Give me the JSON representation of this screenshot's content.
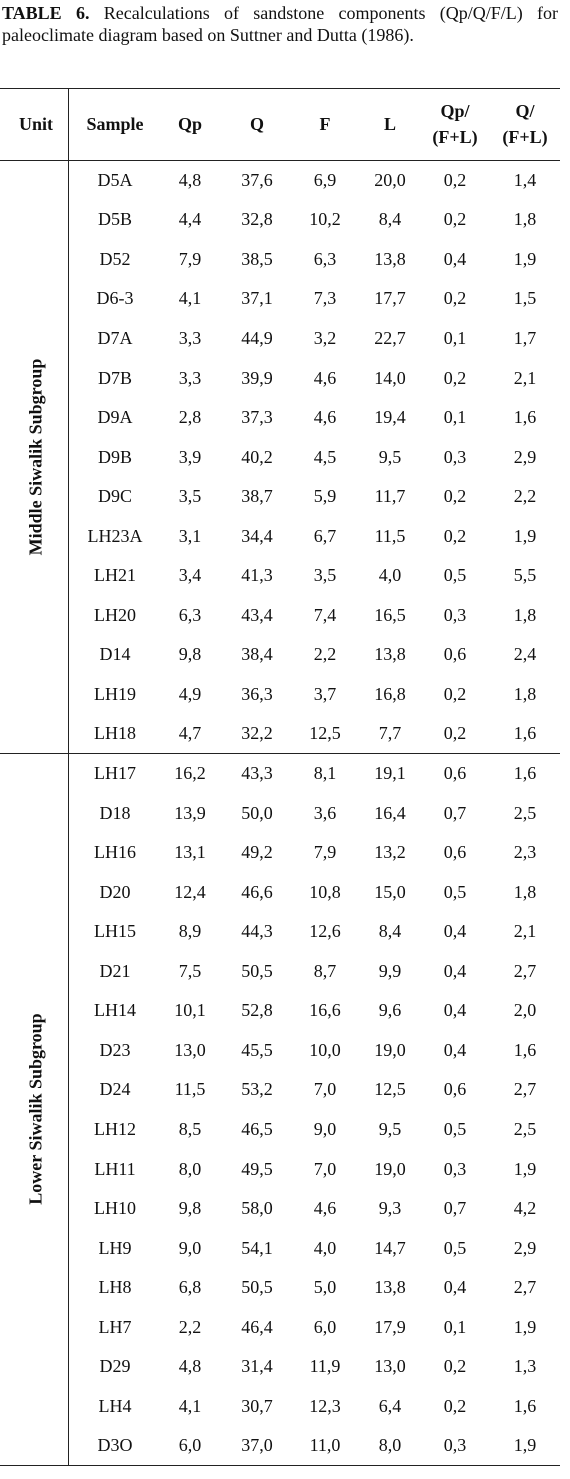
{
  "caption": {
    "label": "TABLE 6.",
    "text": "Recalculations of sandstone components (Qp/Q/F/L) for paleoclimate diagram based on Suttner and Dutta (1986)."
  },
  "table": {
    "header": [
      [
        "Unit"
      ],
      [
        "Sample"
      ],
      [
        "Qp"
      ],
      [
        "Q"
      ],
      [
        "F"
      ],
      [
        "L"
      ],
      [
        "Qp/",
        "(F+L)"
      ],
      [
        "Q/",
        "(F+L)"
      ]
    ],
    "groups": [
      {
        "name": "Middle Siwalik Subgroup",
        "rows": [
          [
            "D5A",
            "4,8",
            "37,6",
            "6,9",
            "20,0",
            "0,2",
            "1,4"
          ],
          [
            "D5B",
            "4,4",
            "32,8",
            "10,2",
            "8,4",
            "0,2",
            "1,8"
          ],
          [
            "D52",
            "7,9",
            "38,5",
            "6,3",
            "13,8",
            "0,4",
            "1,9"
          ],
          [
            "D6-3",
            "4,1",
            "37,1",
            "7,3",
            "17,7",
            "0,2",
            "1,5"
          ],
          [
            "D7A",
            "3,3",
            "44,9",
            "3,2",
            "22,7",
            "0,1",
            "1,7"
          ],
          [
            "D7B",
            "3,3",
            "39,9",
            "4,6",
            "14,0",
            "0,2",
            "2,1"
          ],
          [
            "D9A",
            "2,8",
            "37,3",
            "4,6",
            "19,4",
            "0,1",
            "1,6"
          ],
          [
            "D9B",
            "3,9",
            "40,2",
            "4,5",
            "9,5",
            "0,3",
            "2,9"
          ],
          [
            "D9C",
            "3,5",
            "38,7",
            "5,9",
            "11,7",
            "0,2",
            "2,2"
          ],
          [
            "LH23A",
            "3,1",
            "34,4",
            "6,7",
            "11,5",
            "0,2",
            "1,9"
          ],
          [
            "LH21",
            "3,4",
            "41,3",
            "3,5",
            "4,0",
            "0,5",
            "5,5"
          ],
          [
            "LH20",
            "6,3",
            "43,4",
            "7,4",
            "16,5",
            "0,3",
            "1,8"
          ],
          [
            "D14",
            "9,8",
            "38,4",
            "2,2",
            "13,8",
            "0,6",
            "2,4"
          ],
          [
            "LH19",
            "4,9",
            "36,3",
            "3,7",
            "16,8",
            "0,2",
            "1,8"
          ],
          [
            "LH18",
            "4,7",
            "32,2",
            "12,5",
            "7,7",
            "0,2",
            "1,6"
          ]
        ]
      },
      {
        "name": "Lower Siwalik Subgroup",
        "rows": [
          [
            "LH17",
            "16,2",
            "43,3",
            "8,1",
            "19,1",
            "0,6",
            "1,6"
          ],
          [
            "D18",
            "13,9",
            "50,0",
            "3,6",
            "16,4",
            "0,7",
            "2,5"
          ],
          [
            "LH16",
            "13,1",
            "49,2",
            "7,9",
            "13,2",
            "0,6",
            "2,3"
          ],
          [
            "D20",
            "12,4",
            "46,6",
            "10,8",
            "15,0",
            "0,5",
            "1,8"
          ],
          [
            "LH15",
            "8,9",
            "44,3",
            "12,6",
            "8,4",
            "0,4",
            "2,1"
          ],
          [
            "D21",
            "7,5",
            "50,5",
            "8,7",
            "9,9",
            "0,4",
            "2,7"
          ],
          [
            "LH14",
            "10,1",
            "52,8",
            "16,6",
            "9,6",
            "0,4",
            "2,0"
          ],
          [
            "D23",
            "13,0",
            "45,5",
            "10,0",
            "19,0",
            "0,4",
            "1,6"
          ],
          [
            "D24",
            "11,5",
            "53,2",
            "7,0",
            "12,5",
            "0,6",
            "2,7"
          ],
          [
            "LH12",
            "8,5",
            "46,5",
            "9,0",
            "9,5",
            "0,5",
            "2,5"
          ],
          [
            "LH11",
            "8,0",
            "49,5",
            "7,0",
            "19,0",
            "0,3",
            "1,9"
          ],
          [
            "LH10",
            "9,8",
            "58,0",
            "4,6",
            "9,3",
            "0,7",
            "4,2"
          ],
          [
            "LH9",
            "9,0",
            "54,1",
            "4,0",
            "14,7",
            "0,5",
            "2,9"
          ],
          [
            "LH8",
            "6,8",
            "50,5",
            "5,0",
            "13,8",
            "0,4",
            "2,7"
          ],
          [
            "LH7",
            "2,2",
            "46,4",
            "6,0",
            "17,9",
            "0,1",
            "1,9"
          ],
          [
            "D29",
            "4,8",
            "31,4",
            "11,9",
            "13,0",
            "0,2",
            "1,3"
          ],
          [
            "LH4",
            "4,1",
            "30,7",
            "12,3",
            "6,4",
            "0,2",
            "1,6"
          ],
          [
            "D3O",
            "6,0",
            "37,0",
            "11,0",
            "8,0",
            "0,3",
            "1,9"
          ]
        ]
      }
    ]
  }
}
